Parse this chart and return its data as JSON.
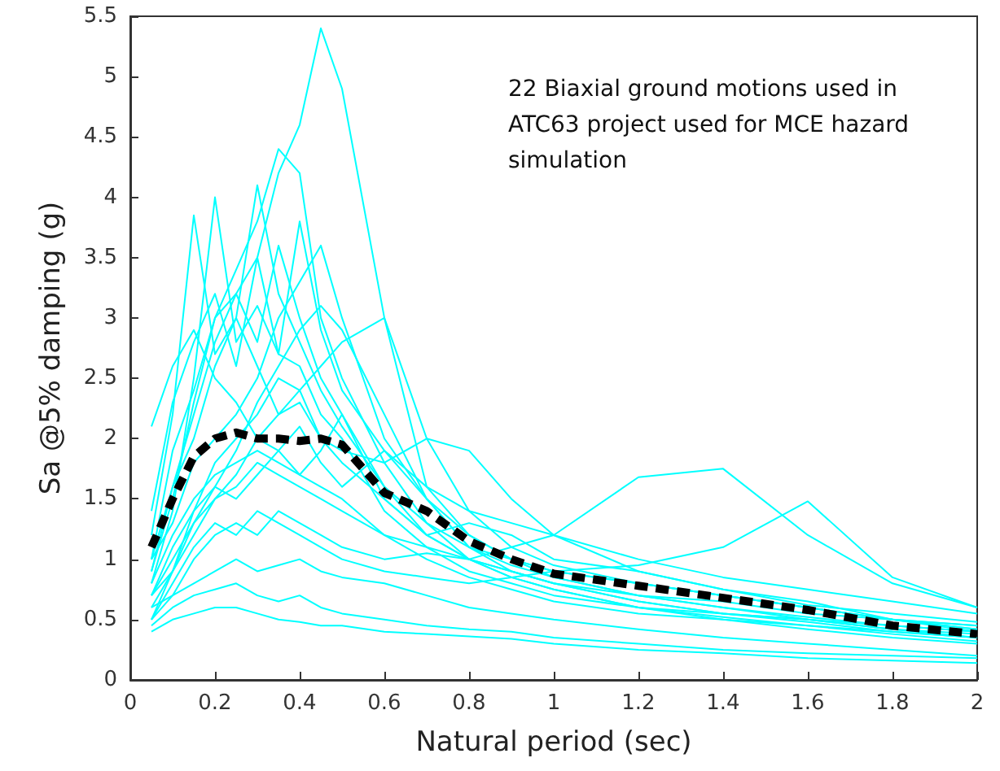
{
  "chart_data": {
    "type": "line",
    "xlabel": "Natural period (sec)",
    "ylabel": "Sa @5% damping (g)",
    "annotations": [
      "22 Biaxial ground motions used in ATC63 project used for MCE hazard simulation"
    ],
    "x": [
      0.05,
      0.1,
      0.15,
      0.2,
      0.25,
      0.3,
      0.35,
      0.4,
      0.45,
      0.5,
      0.6,
      0.7,
      0.8,
      0.9,
      1.0,
      1.2,
      1.4,
      1.6,
      1.8,
      2.0
    ],
    "xlim": [
      0,
      2
    ],
    "xticks": [
      0,
      0.2,
      0.4,
      0.6,
      0.8,
      1,
      1.2,
      1.4,
      1.6,
      1.8,
      2
    ],
    "ylim": [
      0,
      5.5
    ],
    "yticks": [
      0,
      0.5,
      1,
      1.5,
      2,
      2.5,
      3,
      3.5,
      4,
      4.5,
      5,
      5.5
    ],
    "grid": false,
    "marker": "none",
    "series": [
      {
        "color": "#00ffff",
        "values": [
          1.0,
          1.6,
          2.2,
          2.8,
          3.2,
          3.5,
          4.2,
          4.6,
          5.4,
          4.9,
          3.0,
          1.6,
          1.2,
          1.0,
          0.9,
          0.8,
          0.7,
          0.6,
          0.5,
          0.45
        ]
      },
      {
        "color": "#00ffff",
        "values": [
          0.9,
          1.5,
          2.3,
          3.0,
          3.4,
          3.8,
          4.4,
          4.2,
          3.0,
          2.5,
          1.8,
          1.3,
          1.0,
          0.9,
          0.8,
          0.65,
          0.55,
          0.5,
          0.42,
          0.35
        ]
      },
      {
        "color": "#00ffff",
        "values": [
          1.2,
          2.2,
          3.85,
          2.7,
          3.0,
          2.6,
          2.2,
          2.4,
          2.0,
          1.8,
          1.5,
          1.2,
          1.0,
          0.85,
          0.75,
          0.6,
          0.5,
          0.45,
          0.4,
          0.35
        ]
      },
      {
        "color": "#00ffff",
        "values": [
          0.8,
          1.4,
          2.5,
          4.0,
          2.8,
          3.1,
          2.7,
          2.6,
          2.2,
          2.0,
          1.4,
          1.1,
          0.9,
          0.8,
          0.7,
          0.6,
          0.52,
          0.45,
          0.38,
          0.32
        ]
      },
      {
        "color": "#00ffff",
        "values": [
          0.6,
          0.9,
          1.4,
          1.8,
          2.0,
          2.2,
          2.5,
          2.4,
          2.6,
          2.8,
          3.0,
          2.0,
          1.4,
          1.1,
          0.95,
          0.8,
          0.7,
          0.6,
          0.5,
          0.42
        ]
      },
      {
        "color": "#00ffff",
        "values": [
          0.7,
          1.0,
          1.3,
          1.5,
          1.6,
          1.8,
          1.7,
          1.6,
          1.5,
          1.4,
          1.2,
          1.1,
          1.0,
          1.1,
          1.2,
          1.68,
          1.75,
          1.2,
          0.8,
          0.6
        ]
      },
      {
        "color": "#00ffff",
        "values": [
          0.5,
          0.8,
          1.1,
          1.3,
          1.2,
          1.4,
          1.3,
          1.2,
          1.1,
          1.0,
          0.9,
          0.85,
          0.8,
          0.85,
          0.9,
          0.95,
          1.1,
          1.48,
          0.85,
          0.6
        ]
      },
      {
        "color": "#00ffff",
        "values": [
          0.4,
          0.5,
          0.55,
          0.6,
          0.6,
          0.55,
          0.5,
          0.48,
          0.45,
          0.45,
          0.4,
          0.38,
          0.36,
          0.34,
          0.3,
          0.25,
          0.22,
          0.18,
          0.16,
          0.14
        ]
      },
      {
        "color": "#00ffff",
        "values": [
          1.0,
          1.3,
          1.8,
          2.0,
          2.2,
          2.5,
          3.0,
          3.3,
          3.6,
          3.0,
          2.0,
          1.5,
          1.2,
          1.0,
          0.85,
          0.7,
          0.6,
          0.5,
          0.45,
          0.4
        ]
      },
      {
        "color": "#00ffff",
        "values": [
          0.9,
          1.6,
          2.0,
          2.6,
          3.0,
          4.1,
          3.2,
          2.8,
          2.4,
          2.1,
          1.6,
          1.2,
          1.0,
          0.85,
          0.75,
          0.6,
          0.55,
          0.5,
          0.42,
          0.38
        ]
      },
      {
        "color": "#00ffff",
        "values": [
          0.8,
          1.2,
          1.5,
          1.7,
          1.8,
          1.9,
          1.8,
          1.7,
          1.9,
          2.2,
          1.5,
          1.2,
          1.3,
          1.2,
          1.0,
          0.9,
          0.75,
          0.65,
          0.5,
          0.42
        ]
      },
      {
        "color": "#00ffff",
        "values": [
          0.6,
          0.7,
          0.8,
          0.9,
          1.0,
          0.9,
          0.95,
          1.0,
          0.9,
          0.85,
          0.8,
          0.7,
          0.6,
          0.55,
          0.5,
          0.42,
          0.35,
          0.3,
          0.25,
          0.2
        ]
      },
      {
        "color": "#00ffff",
        "values": [
          0.7,
          0.9,
          1.2,
          1.5,
          1.7,
          2.0,
          2.2,
          2.3,
          2.0,
          1.9,
          1.8,
          2.0,
          1.9,
          1.5,
          1.2,
          0.9,
          0.75,
          0.62,
          0.55,
          0.48
        ]
      },
      {
        "color": "#00ffff",
        "values": [
          2.1,
          2.6,
          2.9,
          2.5,
          2.3,
          2.0,
          1.9,
          1.7,
          1.6,
          1.5,
          1.2,
          1.0,
          0.85,
          0.75,
          0.65,
          0.55,
          0.5,
          0.42,
          0.35,
          0.3
        ]
      },
      {
        "color": "#00ffff",
        "values": [
          0.5,
          0.9,
          1.3,
          1.6,
          1.9,
          2.3,
          2.6,
          2.9,
          3.1,
          2.9,
          2.2,
          1.5,
          1.1,
          0.9,
          0.8,
          0.65,
          0.55,
          0.48,
          0.4,
          0.35
        ]
      },
      {
        "color": "#00ffff",
        "values": [
          0.45,
          0.6,
          0.7,
          0.75,
          0.8,
          0.7,
          0.65,
          0.7,
          0.6,
          0.55,
          0.5,
          0.45,
          0.42,
          0.4,
          0.35,
          0.3,
          0.25,
          0.22,
          0.2,
          0.18
        ]
      },
      {
        "color": "#00ffff",
        "values": [
          1.0,
          1.9,
          2.4,
          3.0,
          3.2,
          2.8,
          3.6,
          3.0,
          2.5,
          2.2,
          1.6,
          1.3,
          1.1,
          1.0,
          0.9,
          0.8,
          0.7,
          0.6,
          0.5,
          0.4
        ]
      },
      {
        "color": "#00ffff",
        "values": [
          0.7,
          1.1,
          1.4,
          1.6,
          1.5,
          1.7,
          1.9,
          2.1,
          1.8,
          1.6,
          1.9,
          1.6,
          1.4,
          1.3,
          1.2,
          1.0,
          0.85,
          0.75,
          0.65,
          0.55
        ]
      },
      {
        "color": "#00ffff",
        "values": [
          0.5,
          0.7,
          1.0,
          1.2,
          1.3,
          1.2,
          1.4,
          1.3,
          1.2,
          1.1,
          1.0,
          1.05,
          1.0,
          0.9,
          0.8,
          0.7,
          0.65,
          0.55,
          0.5,
          0.45
        ]
      },
      {
        "color": "#00ffff",
        "values": [
          1.4,
          2.3,
          2.8,
          3.2,
          2.6,
          3.5,
          2.7,
          3.8,
          2.9,
          2.4,
          1.9,
          1.5,
          1.1,
          0.95,
          0.85,
          0.7,
          0.6,
          0.52,
          0.45,
          0.4
        ]
      },
      {
        "color": "#000000",
        "line_style": "dashed",
        "values": [
          1.1,
          1.5,
          1.85,
          2.0,
          2.05,
          2.0,
          2.0,
          1.98,
          2.0,
          1.95,
          1.55,
          1.4,
          1.15,
          1.0,
          0.88,
          0.78,
          0.68,
          0.58,
          0.45,
          0.38
        ]
      }
    ]
  }
}
